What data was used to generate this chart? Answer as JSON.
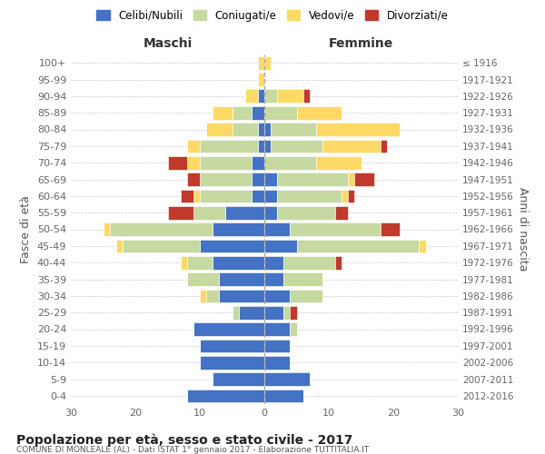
{
  "age_groups": [
    "0-4",
    "5-9",
    "10-14",
    "15-19",
    "20-24",
    "25-29",
    "30-34",
    "35-39",
    "40-44",
    "45-49",
    "50-54",
    "55-59",
    "60-64",
    "65-69",
    "70-74",
    "75-79",
    "80-84",
    "85-89",
    "90-94",
    "95-99",
    "100+"
  ],
  "birth_years": [
    "2012-2016",
    "2007-2011",
    "2002-2006",
    "1997-2001",
    "1992-1996",
    "1987-1991",
    "1982-1986",
    "1977-1981",
    "1972-1976",
    "1967-1971",
    "1962-1966",
    "1957-1961",
    "1952-1956",
    "1947-1951",
    "1942-1946",
    "1937-1941",
    "1932-1936",
    "1927-1931",
    "1922-1926",
    "1917-1921",
    "≤ 1916"
  ],
  "colors": {
    "celibe": "#4472C4",
    "coniugato": "#c5d9a0",
    "vedovo": "#FFD966",
    "divorziato": "#c0392b"
  },
  "maschi": {
    "celibe": [
      12,
      8,
      10,
      10,
      11,
      4,
      7,
      7,
      8,
      10,
      8,
      6,
      2,
      2,
      2,
      1,
      1,
      2,
      1,
      0,
      0
    ],
    "coniugato": [
      0,
      0,
      0,
      0,
      0,
      1,
      2,
      5,
      4,
      12,
      16,
      5,
      8,
      8,
      8,
      9,
      4,
      3,
      0,
      0,
      0
    ],
    "vedovo": [
      0,
      0,
      0,
      0,
      0,
      0,
      1,
      0,
      1,
      1,
      1,
      0,
      1,
      0,
      2,
      2,
      4,
      3,
      2,
      1,
      1
    ],
    "divorziato": [
      0,
      0,
      0,
      0,
      0,
      0,
      0,
      0,
      0,
      0,
      0,
      4,
      2,
      2,
      3,
      0,
      0,
      0,
      0,
      0,
      0
    ]
  },
  "femmine": {
    "celibe": [
      6,
      7,
      4,
      4,
      4,
      3,
      4,
      3,
      3,
      5,
      4,
      2,
      2,
      2,
      0,
      1,
      1,
      0,
      0,
      0,
      0
    ],
    "coniugato": [
      0,
      0,
      0,
      0,
      1,
      1,
      5,
      6,
      8,
      19,
      14,
      9,
      10,
      11,
      8,
      8,
      7,
      5,
      2,
      0,
      0
    ],
    "vedovo": [
      0,
      0,
      0,
      0,
      0,
      0,
      0,
      0,
      0,
      1,
      0,
      0,
      1,
      1,
      7,
      9,
      13,
      7,
      4,
      0,
      1
    ],
    "divorziato": [
      0,
      0,
      0,
      0,
      0,
      1,
      0,
      0,
      1,
      0,
      3,
      2,
      1,
      3,
      0,
      1,
      0,
      0,
      1,
      0,
      0
    ]
  },
  "xlim": 30,
  "title": "Popolazione per età, sesso e stato civile - 2017",
  "subtitle": "COMUNE DI MONLEALE (AL) - Dati ISTAT 1° gennaio 2017 - Elaborazione TUTTITALIA.IT",
  "ylabel": "Fasce di età",
  "ylabel_right": "Anni di nascita",
  "xlabel_left": "Maschi",
  "xlabel_right": "Femmine",
  "bg_color": "#ffffff",
  "grid_color": "#cccccc"
}
